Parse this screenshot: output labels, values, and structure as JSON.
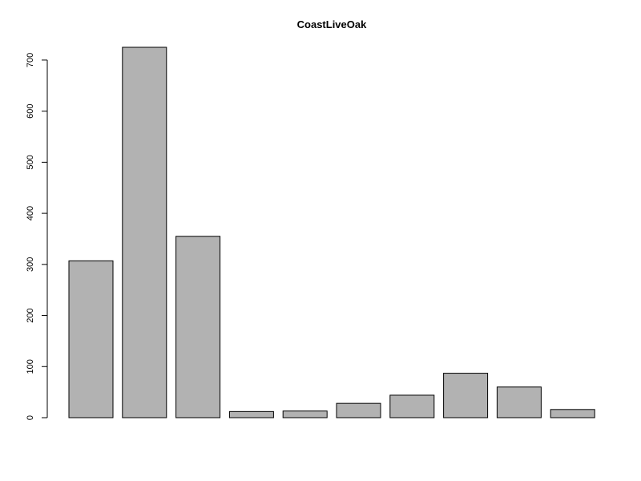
{
  "chart_data": {
    "type": "bar",
    "title": "CoastLiveOak",
    "xlabel": "",
    "ylabel": "",
    "categories": [
      "",
      "",
      "",
      "",
      "",
      "",
      "",
      "",
      "",
      ""
    ],
    "values": [
      307,
      725,
      355,
      12,
      13,
      28,
      44,
      87,
      60,
      16
    ],
    "ylim": [
      0,
      725
    ],
    "yticks": [
      0,
      100,
      200,
      300,
      400,
      500,
      600,
      700
    ],
    "grid": false,
    "legend": "none",
    "colors": {
      "bar_fill": "#b2b2b2",
      "bar_stroke": "#000000"
    }
  }
}
